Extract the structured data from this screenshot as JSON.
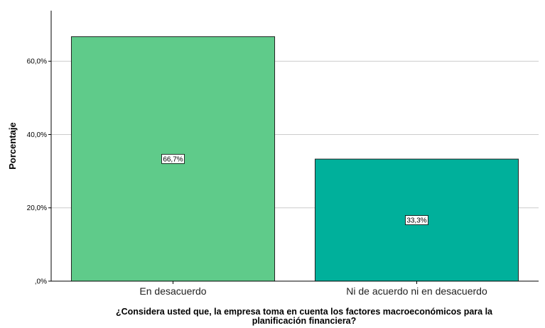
{
  "chart_data": {
    "type": "bar",
    "categories": [
      "En desacuerdo",
      "Ni de acuerdo ni en desacuerdo"
    ],
    "values": [
      66.7,
      33.3
    ],
    "data_labels": [
      "66,7%",
      "33,3%"
    ],
    "bar_colors": [
      "#5fcb8a",
      "#00b09b"
    ],
    "ylabel": "Porcentaje",
    "xlabel_lines": [
      "¿Considera usted que, la empresa toma en cuenta los factores macroeconómicos para la",
      "planificación financiera?"
    ],
    "yticks": [
      {
        "value": 0,
        "label": ",0%"
      },
      {
        "value": 20,
        "label": "20,0%"
      },
      {
        "value": 40,
        "label": "40,0%"
      },
      {
        "value": 60,
        "label": "60,0%"
      }
    ],
    "ylim": [
      0,
      73.8
    ],
    "grid": true
  }
}
